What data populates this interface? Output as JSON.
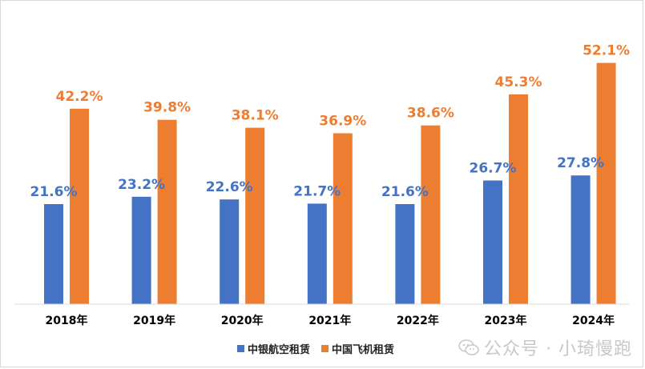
{
  "chart_data": {
    "type": "bar",
    "categories": [
      "2018年",
      "2019年",
      "2020年",
      "2021年",
      "2022年",
      "2023年",
      "2024年"
    ],
    "series": [
      {
        "name": "中银航空租赁",
        "color": "#4472c4",
        "values": [
          21.6,
          23.2,
          22.6,
          21.7,
          21.6,
          26.7,
          27.8
        ],
        "labels": [
          "21.6%",
          "23.2%",
          "22.6%",
          "21.7%",
          "21.6%",
          "26.7%",
          "27.8%"
        ]
      },
      {
        "name": "中国飞机租赁",
        "color": "#ed7d31",
        "values": [
          42.2,
          39.8,
          38.1,
          36.9,
          38.6,
          45.3,
          52.1
        ],
        "labels": [
          "42.2%",
          "39.8%",
          "38.1%",
          "36.9%",
          "38.6%",
          "45.3%",
          "52.1%"
        ]
      }
    ],
    "ylim": [
      0,
      56
    ],
    "grid": false,
    "legend_position": "bottom-center"
  },
  "watermark": {
    "icon": "wechat-icon",
    "text": "公众号 · 小琦慢跑"
  }
}
